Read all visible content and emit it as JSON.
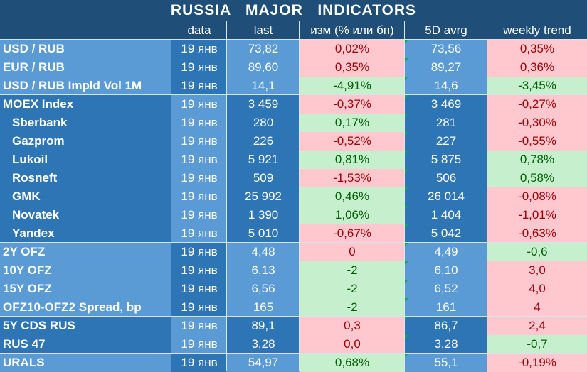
{
  "title": "RUSSIA   MAJOR   INDICATORS",
  "columns": [
    "",
    "data",
    "last",
    "изм (% или бп)",
    "5D avrg",
    "weekly trend"
  ],
  "rows": [
    {
      "name": "USD / RUB",
      "date": "19 янв",
      "last": "73,82",
      "chg": "0,02%",
      "chg_tone": "neg",
      "avg": "73,56",
      "trend": "0,35%",
      "trend_tone": "neg",
      "indent": false,
      "group": "light",
      "group_start": true
    },
    {
      "name": "EUR / RUB",
      "date": "19 янв",
      "last": "89,60",
      "chg": "0,35%",
      "chg_tone": "neg",
      "avg": "89,27",
      "trend": "0,36%",
      "trend_tone": "neg",
      "indent": false,
      "group": "light",
      "group_start": false
    },
    {
      "name": "USD / RUB Impld Vol 1M",
      "date": "19 янв",
      "last": "14,1",
      "chg": "-4,91%",
      "chg_tone": "pos",
      "avg": "14,6",
      "trend": "-3,45%",
      "trend_tone": "pos",
      "indent": false,
      "group": "light",
      "group_start": false
    },
    {
      "name": "MOEX Index",
      "date": "19 янв",
      "last": "3 459",
      "chg": "-0,37%",
      "chg_tone": "neg",
      "avg": "3 469",
      "trend": "-0,27%",
      "trend_tone": "neg",
      "indent": false,
      "group": "dark",
      "group_start": true
    },
    {
      "name": "Sberbank",
      "date": "19 янв",
      "last": "280",
      "chg": "0,17%",
      "chg_tone": "pos",
      "avg": "281",
      "trend": "-0,30%",
      "trend_tone": "neg",
      "indent": true,
      "group": "dark",
      "group_start": false
    },
    {
      "name": "Gazprom",
      "date": "19 янв",
      "last": "226",
      "chg": "-0,52%",
      "chg_tone": "neg",
      "avg": "227",
      "trend": "-0,55%",
      "trend_tone": "neg",
      "indent": true,
      "group": "dark",
      "group_start": false
    },
    {
      "name": "Lukoil",
      "date": "19 янв",
      "last": "5 921",
      "chg": "0,81%",
      "chg_tone": "pos",
      "avg": "5 875",
      "trend": "0,78%",
      "trend_tone": "pos",
      "indent": true,
      "group": "dark",
      "group_start": false
    },
    {
      "name": "Rosneft",
      "date": "19 янв",
      "last": "509",
      "chg": "-1,53%",
      "chg_tone": "neg",
      "avg": "506",
      "trend": "0,58%",
      "trend_tone": "pos",
      "indent": true,
      "group": "dark",
      "group_start": false
    },
    {
      "name": "GMK",
      "date": "19 янв",
      "last": "25 992",
      "chg": "0,46%",
      "chg_tone": "pos",
      "avg": "26 014",
      "trend": "-0,08%",
      "trend_tone": "neg",
      "indent": true,
      "group": "dark",
      "group_start": false
    },
    {
      "name": "Novatek",
      "date": "19 янв",
      "last": "1 390",
      "chg": "1,06%",
      "chg_tone": "pos",
      "avg": "1 404",
      "trend": "-1,01%",
      "trend_tone": "neg",
      "indent": true,
      "group": "dark",
      "group_start": false
    },
    {
      "name": "Yandex",
      "date": "19 янв",
      "last": "5 010",
      "chg": "-0,67%",
      "chg_tone": "neg",
      "avg": "5 042",
      "trend": "-0,63%",
      "trend_tone": "neg",
      "indent": true,
      "group": "dark",
      "group_start": false
    },
    {
      "name": "2Y OFZ",
      "date": "19 янв",
      "last": "4,48",
      "chg": "0",
      "chg_tone": "neg",
      "avg": "4,49",
      "trend": "-0,6",
      "trend_tone": "pos",
      "indent": false,
      "group": "light",
      "group_start": true
    },
    {
      "name": "10Y OFZ",
      "date": "19 янв",
      "last": "6,13",
      "chg": "-2",
      "chg_tone": "pos",
      "avg": "6,10",
      "trend": "3,0",
      "trend_tone": "neg",
      "indent": false,
      "group": "light",
      "group_start": false
    },
    {
      "name": "15Y OFZ",
      "date": "19 янв",
      "last": "6,56",
      "chg": "-2",
      "chg_tone": "pos",
      "avg": "6,52",
      "trend": "4,0",
      "trend_tone": "neg",
      "indent": false,
      "group": "light",
      "group_start": false
    },
    {
      "name": "OFZ10-OFZ2 Spread, bp",
      "date": "19 янв",
      "last": "165",
      "chg": "-2",
      "chg_tone": "pos",
      "avg": "161",
      "trend": "4",
      "trend_tone": "neg",
      "indent": false,
      "group": "light",
      "group_start": false
    },
    {
      "name": "5Y CDS RUS",
      "date": "19 янв",
      "last": "89,1",
      "chg": "0,3",
      "chg_tone": "neg",
      "avg": "86,7",
      "trend": "2,4",
      "trend_tone": "neg",
      "indent": false,
      "group": "dark",
      "group_start": true
    },
    {
      "name": "RUS 47",
      "date": "19 янв",
      "last": "3,28",
      "chg": "0,0",
      "chg_tone": "neg",
      "avg": "3,28",
      "trend": "-0,7",
      "trend_tone": "pos",
      "indent": false,
      "group": "dark",
      "group_start": false
    },
    {
      "name": "URALS",
      "date": "19 янв",
      "last": "54,97",
      "chg": "0,68%",
      "chg_tone": "pos",
      "avg": "55,1",
      "trend": "-0,19%",
      "trend_tone": "neg",
      "indent": false,
      "group": "light",
      "group_start": true
    }
  ],
  "colors": {
    "header": "#1f4e79",
    "dark": "#2e75b6",
    "light": "#5b9bd5",
    "neg_bg": "#ffc7ce",
    "neg_fg": "#9c0006",
    "pos_bg": "#c6efce",
    "pos_fg": "#006100"
  }
}
